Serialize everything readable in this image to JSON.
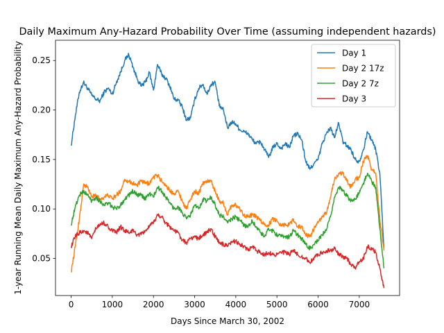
{
  "chart_data": {
    "type": "line",
    "title": "Daily Maximum Any-Hazard Probability Over Time (assuming independent hazards)",
    "xlabel": "Days Since March 30, 2002",
    "ylabel": "1-year Running Mean Daily Maximum Any-Hazard Probability",
    "xlim": [
      -380,
      7980
    ],
    "ylim": [
      0.0125,
      0.2705
    ],
    "xticks": [
      0,
      1000,
      2000,
      3000,
      4000,
      5000,
      6000,
      7000
    ],
    "yticks": [
      0.05,
      0.1,
      0.15,
      0.2,
      0.25
    ],
    "grid": false,
    "legend_position": "top-right",
    "series": [
      {
        "name": "Day 1",
        "color": "#1f77b4",
        "points": [
          [
            0,
            0.164
          ],
          [
            100,
            0.194
          ],
          [
            200,
            0.218
          ],
          [
            300,
            0.228
          ],
          [
            400,
            0.222
          ],
          [
            500,
            0.215
          ],
          [
            600,
            0.211
          ],
          [
            700,
            0.209
          ],
          [
            800,
            0.218
          ],
          [
            900,
            0.222
          ],
          [
            1000,
            0.216
          ],
          [
            1100,
            0.228
          ],
          [
            1200,
            0.238
          ],
          [
            1300,
            0.25
          ],
          [
            1400,
            0.256
          ],
          [
            1500,
            0.244
          ],
          [
            1600,
            0.232
          ],
          [
            1700,
            0.224
          ],
          [
            1800,
            0.228
          ],
          [
            1900,
            0.238
          ],
          [
            2000,
            0.22
          ],
          [
            2100,
            0.246
          ],
          [
            2200,
            0.236
          ],
          [
            2300,
            0.232
          ],
          [
            2400,
            0.224
          ],
          [
            2500,
            0.211
          ],
          [
            2600,
            0.21
          ],
          [
            2700,
            0.203
          ],
          [
            2800,
            0.19
          ],
          [
            2900,
            0.192
          ],
          [
            3000,
            0.21
          ],
          [
            3100,
            0.222
          ],
          [
            3200,
            0.226
          ],
          [
            3300,
            0.216
          ],
          [
            3400,
            0.226
          ],
          [
            3500,
            0.228
          ],
          [
            3600,
            0.204
          ],
          [
            3700,
            0.2
          ],
          [
            3800,
            0.182
          ],
          [
            3900,
            0.188
          ],
          [
            4000,
            0.186
          ],
          [
            4100,
            0.18
          ],
          [
            4200,
            0.178
          ],
          [
            4300,
            0.176
          ],
          [
            4400,
            0.17
          ],
          [
            4500,
            0.166
          ],
          [
            4600,
            0.168
          ],
          [
            4700,
            0.16
          ],
          [
            4800,
            0.152
          ],
          [
            4900,
            0.162
          ],
          [
            5000,
            0.166
          ],
          [
            5100,
            0.161
          ],
          [
            5200,
            0.166
          ],
          [
            5300,
            0.162
          ],
          [
            5400,
            0.174
          ],
          [
            5500,
            0.176
          ],
          [
            5600,
            0.17
          ],
          [
            5700,
            0.148
          ],
          [
            5800,
            0.14
          ],
          [
            5900,
            0.146
          ],
          [
            6000,
            0.15
          ],
          [
            6100,
            0.166
          ],
          [
            6200,
            0.176
          ],
          [
            6300,
            0.182
          ],
          [
            6400,
            0.172
          ],
          [
            6500,
            0.187
          ],
          [
            6600,
            0.168
          ],
          [
            6700,
            0.164
          ],
          [
            6800,
            0.16
          ],
          [
            6900,
            0.15
          ],
          [
            7000,
            0.148
          ],
          [
            7100,
            0.16
          ],
          [
            7200,
            0.178
          ],
          [
            7300,
            0.17
          ],
          [
            7400,
            0.16
          ],
          [
            7500,
            0.136
          ],
          [
            7600,
            0.06
          ]
        ]
      },
      {
        "name": "Day 2 17z",
        "color": "#ff7f0e",
        "points": [
          [
            0,
            0.036
          ],
          [
            100,
            0.062
          ],
          [
            200,
            0.09
          ],
          [
            300,
            0.124
          ],
          [
            400,
            0.122
          ],
          [
            500,
            0.112
          ],
          [
            600,
            0.114
          ],
          [
            700,
            0.11
          ],
          [
            800,
            0.112
          ],
          [
            900,
            0.114
          ],
          [
            1000,
            0.11
          ],
          [
            1100,
            0.114
          ],
          [
            1200,
            0.118
          ],
          [
            1300,
            0.13
          ],
          [
            1400,
            0.128
          ],
          [
            1500,
            0.126
          ],
          [
            1600,
            0.124
          ],
          [
            1700,
            0.128
          ],
          [
            1800,
            0.126
          ],
          [
            1900,
            0.126
          ],
          [
            2000,
            0.132
          ],
          [
            2100,
            0.134
          ],
          [
            2200,
            0.128
          ],
          [
            2300,
            0.124
          ],
          [
            2400,
            0.118
          ],
          [
            2500,
            0.116
          ],
          [
            2600,
            0.118
          ],
          [
            2700,
            0.108
          ],
          [
            2800,
            0.1
          ],
          [
            2900,
            0.11
          ],
          [
            3000,
            0.118
          ],
          [
            3100,
            0.116
          ],
          [
            3200,
            0.126
          ],
          [
            3300,
            0.128
          ],
          [
            3400,
            0.128
          ],
          [
            3500,
            0.118
          ],
          [
            3600,
            0.108
          ],
          [
            3700,
            0.106
          ],
          [
            3800,
            0.094
          ],
          [
            3900,
            0.104
          ],
          [
            4000,
            0.104
          ],
          [
            4100,
            0.1
          ],
          [
            4200,
            0.094
          ],
          [
            4300,
            0.092
          ],
          [
            4400,
            0.094
          ],
          [
            4500,
            0.092
          ],
          [
            4600,
            0.088
          ],
          [
            4700,
            0.084
          ],
          [
            4800,
            0.084
          ],
          [
            4900,
            0.09
          ],
          [
            5000,
            0.088
          ],
          [
            5100,
            0.084
          ],
          [
            5200,
            0.084
          ],
          [
            5300,
            0.084
          ],
          [
            5400,
            0.09
          ],
          [
            5500,
            0.082
          ],
          [
            5600,
            0.082
          ],
          [
            5700,
            0.074
          ],
          [
            5800,
            0.072
          ],
          [
            5900,
            0.08
          ],
          [
            6000,
            0.086
          ],
          [
            6100,
            0.092
          ],
          [
            6200,
            0.096
          ],
          [
            6300,
            0.112
          ],
          [
            6400,
            0.13
          ],
          [
            6500,
            0.136
          ],
          [
            6600,
            0.136
          ],
          [
            6700,
            0.128
          ],
          [
            6800,
            0.122
          ],
          [
            6900,
            0.13
          ],
          [
            7000,
            0.132
          ],
          [
            7100,
            0.148
          ],
          [
            7200,
            0.154
          ],
          [
            7300,
            0.14
          ],
          [
            7400,
            0.136
          ],
          [
            7500,
            0.09
          ],
          [
            7600,
            0.058
          ]
        ]
      },
      {
        "name": "Day 2 7z",
        "color": "#2ca02c",
        "points": [
          [
            0,
            0.084
          ],
          [
            100,
            0.102
          ],
          [
            200,
            0.114
          ],
          [
            300,
            0.118
          ],
          [
            400,
            0.114
          ],
          [
            500,
            0.108
          ],
          [
            600,
            0.112
          ],
          [
            700,
            0.108
          ],
          [
            800,
            0.104
          ],
          [
            900,
            0.106
          ],
          [
            1000,
            0.102
          ],
          [
            1100,
            0.1
          ],
          [
            1200,
            0.104
          ],
          [
            1300,
            0.11
          ],
          [
            1400,
            0.114
          ],
          [
            1500,
            0.118
          ],
          [
            1600,
            0.114
          ],
          [
            1700,
            0.114
          ],
          [
            1800,
            0.11
          ],
          [
            1900,
            0.116
          ],
          [
            2000,
            0.112
          ],
          [
            2100,
            0.122
          ],
          [
            2200,
            0.118
          ],
          [
            2300,
            0.112
          ],
          [
            2400,
            0.106
          ],
          [
            2500,
            0.1
          ],
          [
            2600,
            0.102
          ],
          [
            2700,
            0.096
          ],
          [
            2800,
            0.09
          ],
          [
            2900,
            0.094
          ],
          [
            3000,
            0.104
          ],
          [
            3100,
            0.1
          ],
          [
            3200,
            0.11
          ],
          [
            3300,
            0.108
          ],
          [
            3400,
            0.112
          ],
          [
            3500,
            0.104
          ],
          [
            3600,
            0.094
          ],
          [
            3700,
            0.092
          ],
          [
            3800,
            0.086
          ],
          [
            3900,
            0.09
          ],
          [
            4000,
            0.092
          ],
          [
            4100,
            0.088
          ],
          [
            4200,
            0.084
          ],
          [
            4300,
            0.082
          ],
          [
            4400,
            0.088
          ],
          [
            4500,
            0.082
          ],
          [
            4600,
            0.076
          ],
          [
            4700,
            0.072
          ],
          [
            4800,
            0.08
          ],
          [
            4900,
            0.078
          ],
          [
            5000,
            0.074
          ],
          [
            5100,
            0.072
          ],
          [
            5200,
            0.072
          ],
          [
            5300,
            0.072
          ],
          [
            5400,
            0.078
          ],
          [
            5500,
            0.074
          ],
          [
            5600,
            0.07
          ],
          [
            5700,
            0.064
          ],
          [
            5800,
            0.06
          ],
          [
            5900,
            0.064
          ],
          [
            6000,
            0.068
          ],
          [
            6100,
            0.074
          ],
          [
            6200,
            0.078
          ],
          [
            6300,
            0.092
          ],
          [
            6400,
            0.112
          ],
          [
            6500,
            0.122
          ],
          [
            6600,
            0.118
          ],
          [
            6700,
            0.114
          ],
          [
            6800,
            0.108
          ],
          [
            6900,
            0.11
          ],
          [
            7000,
            0.116
          ],
          [
            7100,
            0.126
          ],
          [
            7200,
            0.136
          ],
          [
            7300,
            0.128
          ],
          [
            7400,
            0.122
          ],
          [
            7500,
            0.08
          ],
          [
            7600,
            0.04
          ]
        ]
      },
      {
        "name": "Day 3",
        "color": "#d62728",
        "points": [
          [
            0,
            0.062
          ],
          [
            100,
            0.072
          ],
          [
            200,
            0.076
          ],
          [
            300,
            0.078
          ],
          [
            400,
            0.076
          ],
          [
            500,
            0.07
          ],
          [
            600,
            0.08
          ],
          [
            700,
            0.084
          ],
          [
            800,
            0.086
          ],
          [
            900,
            0.082
          ],
          [
            1000,
            0.078
          ],
          [
            1100,
            0.076
          ],
          [
            1200,
            0.082
          ],
          [
            1300,
            0.078
          ],
          [
            1400,
            0.076
          ],
          [
            1500,
            0.078
          ],
          [
            1600,
            0.074
          ],
          [
            1700,
            0.074
          ],
          [
            1800,
            0.078
          ],
          [
            1900,
            0.082
          ],
          [
            2000,
            0.086
          ],
          [
            2100,
            0.094
          ],
          [
            2200,
            0.092
          ],
          [
            2300,
            0.086
          ],
          [
            2400,
            0.082
          ],
          [
            2500,
            0.078
          ],
          [
            2600,
            0.076
          ],
          [
            2700,
            0.068
          ],
          [
            2800,
            0.066
          ],
          [
            2900,
            0.07
          ],
          [
            3000,
            0.072
          ],
          [
            3100,
            0.07
          ],
          [
            3200,
            0.074
          ],
          [
            3300,
            0.076
          ],
          [
            3400,
            0.08
          ],
          [
            3500,
            0.072
          ],
          [
            3600,
            0.066
          ],
          [
            3700,
            0.064
          ],
          [
            3800,
            0.062
          ],
          [
            3900,
            0.066
          ],
          [
            4000,
            0.068
          ],
          [
            4100,
            0.064
          ],
          [
            4200,
            0.062
          ],
          [
            4300,
            0.058
          ],
          [
            4400,
            0.062
          ],
          [
            4500,
            0.058
          ],
          [
            4600,
            0.056
          ],
          [
            4700,
            0.054
          ],
          [
            4800,
            0.056
          ],
          [
            4900,
            0.054
          ],
          [
            5000,
            0.054
          ],
          [
            5100,
            0.056
          ],
          [
            5200,
            0.056
          ],
          [
            5300,
            0.054
          ],
          [
            5400,
            0.058
          ],
          [
            5500,
            0.054
          ],
          [
            5600,
            0.052
          ],
          [
            5700,
            0.05
          ],
          [
            5800,
            0.046
          ],
          [
            5900,
            0.05
          ],
          [
            6000,
            0.054
          ],
          [
            6100,
            0.056
          ],
          [
            6200,
            0.058
          ],
          [
            6300,
            0.058
          ],
          [
            6400,
            0.06
          ],
          [
            6500,
            0.054
          ],
          [
            6600,
            0.052
          ],
          [
            6700,
            0.05
          ],
          [
            6800,
            0.044
          ],
          [
            6900,
            0.04
          ],
          [
            7000,
            0.046
          ],
          [
            7100,
            0.05
          ],
          [
            7200,
            0.062
          ],
          [
            7300,
            0.06
          ],
          [
            7400,
            0.056
          ],
          [
            7500,
            0.04
          ],
          [
            7600,
            0.02
          ]
        ]
      }
    ]
  }
}
